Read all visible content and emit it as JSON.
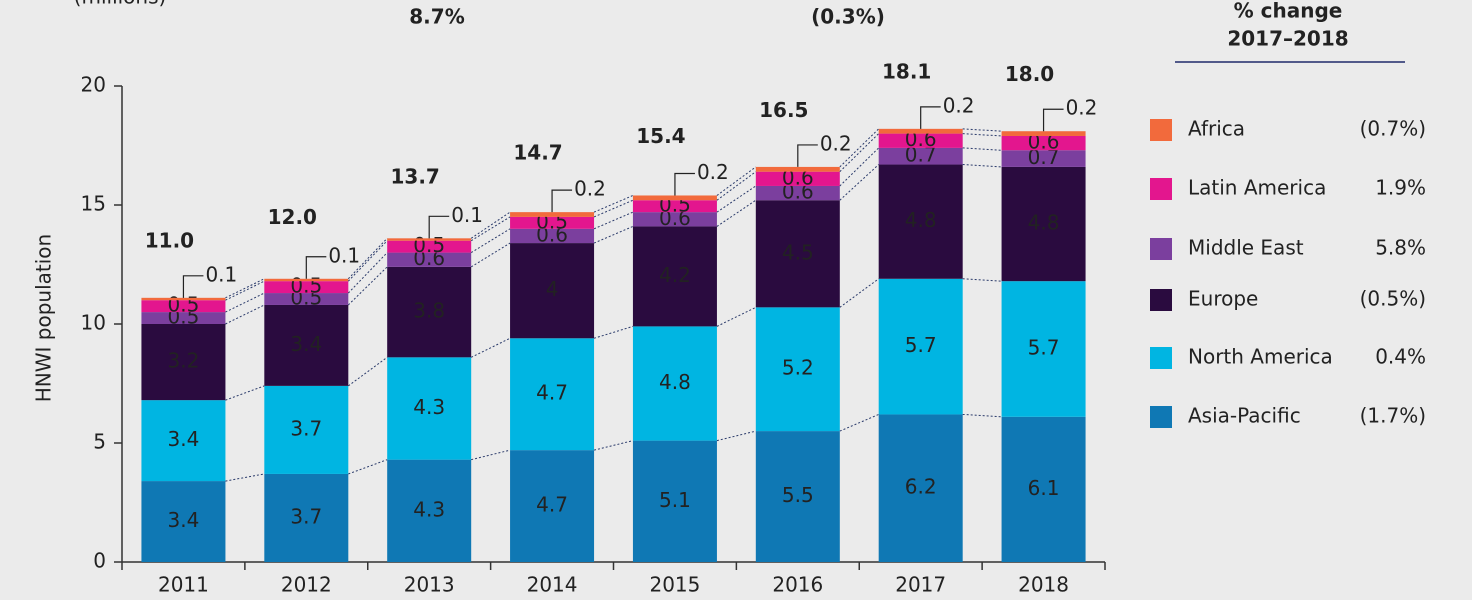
{
  "chart_data": {
    "type": "bar",
    "stacked": true,
    "annotations": [
      {
        "text": "(millions)",
        "color": "#1ab0e0"
      },
      {
        "text": "8.7%",
        "color": "#2e9e4a"
      },
      {
        "text": "(0.3%)",
        "color": "#e8506a"
      }
    ],
    "ylabel": "HNWI population",
    "categories": [
      "2011",
      "2012",
      "2013",
      "2014",
      "2015",
      "2016",
      "2017",
      "2018"
    ],
    "ylim": [
      0,
      20
    ],
    "yticks": [
      0,
      5,
      10,
      15,
      20
    ],
    "legend_title": "% change",
    "legend_subtitle": "2017–2018",
    "series": [
      {
        "name": "Asia-Pacific",
        "color": "#0f78b4",
        "values": [
          3.4,
          3.7,
          4.3,
          4.7,
          5.1,
          5.5,
          6.2,
          6.1
        ],
        "change": "(1.7%)",
        "change_color": "#e8506a"
      },
      {
        "name": "North America",
        "color": "#00b5e2",
        "values": [
          3.4,
          3.7,
          4.3,
          4.7,
          4.8,
          5.2,
          5.7,
          5.7
        ],
        "change": "0.4%",
        "change_color": "#222222"
      },
      {
        "name": "Europe",
        "color": "#2a0b3f",
        "values": [
          3.2,
          3.4,
          3.8,
          4.0,
          4.2,
          4.5,
          4.8,
          4.8
        ],
        "change": "(0.5%)",
        "change_color": "#e8506a"
      },
      {
        "name": "Middle East",
        "color": "#7b3f9e",
        "values": [
          0.5,
          0.5,
          0.6,
          0.6,
          0.6,
          0.6,
          0.7,
          0.7
        ],
        "change": "5.8%",
        "change_color": "#222222"
      },
      {
        "name": "Latin America",
        "color": "#e3168e",
        "values": [
          0.5,
          0.5,
          0.5,
          0.5,
          0.5,
          0.6,
          0.6,
          0.6
        ],
        "change": "1.9%",
        "change_color": "#222222"
      },
      {
        "name": "Africa",
        "color": "#f26a3c",
        "values": [
          0.1,
          0.1,
          0.1,
          0.2,
          0.2,
          0.2,
          0.2,
          0.2
        ],
        "change": "(0.7%)",
        "change_color": "#e8506a"
      }
    ],
    "totals": {
      "values": [
        11.0,
        12.0,
        13.7,
        14.7,
        15.4,
        16.5,
        18.1,
        18.0
      ],
      "value_labels": [
        "11.0",
        "12.0",
        "13.7",
        "14.7",
        "15.4",
        "16.5",
        "18.1",
        "18.0"
      ]
    }
  }
}
